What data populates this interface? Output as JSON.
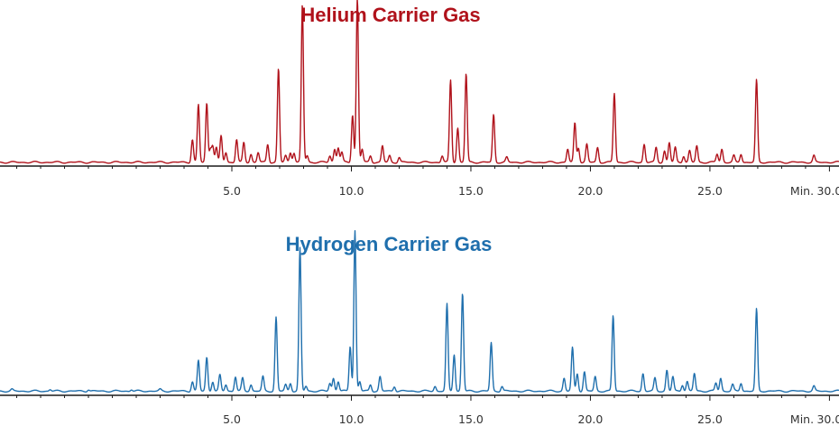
{
  "chart_data": [
    {
      "type": "line",
      "title": "Helium Carrier Gas",
      "color": "#b0121b",
      "xunit_label": "Min.",
      "xlim": [
        -4.7,
        30.4
      ],
      "ylim": [
        0,
        100
      ],
      "xticks": [
        5.0,
        10.0,
        15.0,
        20.0,
        25.0,
        30.0
      ],
      "xtick_labels": [
        "5.0",
        "10.0",
        "15.0",
        "20.0",
        "25.0",
        "30.0"
      ],
      "grid": false,
      "y_axis_shown": false,
      "baseline": 1.2,
      "peaks": [
        {
          "x": 3.35,
          "h": 14
        },
        {
          "x": 3.6,
          "h": 35
        },
        {
          "x": 3.95,
          "h": 36
        },
        {
          "x": 4.1,
          "h": 8
        },
        {
          "x": 4.2,
          "h": 10
        },
        {
          "x": 4.35,
          "h": 9
        },
        {
          "x": 4.55,
          "h": 16
        },
        {
          "x": 4.75,
          "h": 6
        },
        {
          "x": 5.2,
          "h": 14
        },
        {
          "x": 5.5,
          "h": 12
        },
        {
          "x": 5.8,
          "h": 5
        },
        {
          "x": 6.1,
          "h": 6
        },
        {
          "x": 6.5,
          "h": 11
        },
        {
          "x": 6.95,
          "h": 57
        },
        {
          "x": 7.25,
          "h": 4
        },
        {
          "x": 7.45,
          "h": 6
        },
        {
          "x": 7.6,
          "h": 6
        },
        {
          "x": 7.95,
          "h": 96
        },
        {
          "x": 8.15,
          "h": 4
        },
        {
          "x": 9.1,
          "h": 4
        },
        {
          "x": 9.3,
          "h": 8
        },
        {
          "x": 9.45,
          "h": 9
        },
        {
          "x": 9.6,
          "h": 6
        },
        {
          "x": 10.05,
          "h": 29
        },
        {
          "x": 10.25,
          "h": 100
        },
        {
          "x": 10.45,
          "h": 8
        },
        {
          "x": 10.8,
          "h": 4
        },
        {
          "x": 11.3,
          "h": 10
        },
        {
          "x": 11.6,
          "h": 4
        },
        {
          "x": 12.0,
          "h": 3
        },
        {
          "x": 13.8,
          "h": 4
        },
        {
          "x": 14.15,
          "h": 50
        },
        {
          "x": 14.45,
          "h": 21
        },
        {
          "x": 14.8,
          "h": 54
        },
        {
          "x": 15.95,
          "h": 29
        },
        {
          "x": 16.5,
          "h": 3
        },
        {
          "x": 19.05,
          "h": 8
        },
        {
          "x": 19.35,
          "h": 24
        },
        {
          "x": 19.5,
          "h": 9
        },
        {
          "x": 19.85,
          "h": 11
        },
        {
          "x": 20.3,
          "h": 9
        },
        {
          "x": 21.0,
          "h": 42
        },
        {
          "x": 22.25,
          "h": 11
        },
        {
          "x": 22.75,
          "h": 9
        },
        {
          "x": 23.1,
          "h": 7
        },
        {
          "x": 23.3,
          "h": 12
        },
        {
          "x": 23.55,
          "h": 9
        },
        {
          "x": 23.9,
          "h": 4
        },
        {
          "x": 24.15,
          "h": 7
        },
        {
          "x": 24.45,
          "h": 10
        },
        {
          "x": 25.3,
          "h": 5
        },
        {
          "x": 25.5,
          "h": 8
        },
        {
          "x": 26.0,
          "h": 4
        },
        {
          "x": 26.3,
          "h": 5
        },
        {
          "x": 26.95,
          "h": 50
        },
        {
          "x": 29.35,
          "h": 4
        }
      ]
    },
    {
      "type": "line",
      "title": "Hydrogen Carrier Gas",
      "color": "#1f6fad",
      "xunit_label": "Min.",
      "xlim": [
        -4.7,
        30.4
      ],
      "ylim": [
        0,
        100
      ],
      "xticks": [
        5.0,
        10.0,
        15.0,
        20.0,
        25.0,
        30.0
      ],
      "xtick_labels": [
        "5.0",
        "10.0",
        "15.0",
        "20.0",
        "25.0",
        "30.0"
      ],
      "grid": false,
      "y_axis_shown": false,
      "baseline": 1.5,
      "peaks": [
        {
          "x": -4.2,
          "h": 1
        },
        {
          "x": -2.6,
          "h": 1
        },
        {
          "x": -1.0,
          "h": 1
        },
        {
          "x": 0.8,
          "h": 1
        },
        {
          "x": 2.0,
          "h": 1
        },
        {
          "x": 3.35,
          "h": 6
        },
        {
          "x": 3.6,
          "h": 19
        },
        {
          "x": 3.95,
          "h": 21
        },
        {
          "x": 4.2,
          "h": 6
        },
        {
          "x": 4.5,
          "h": 10
        },
        {
          "x": 4.75,
          "h": 4
        },
        {
          "x": 5.15,
          "h": 9
        },
        {
          "x": 5.45,
          "h": 8
        },
        {
          "x": 5.8,
          "h": 4
        },
        {
          "x": 6.3,
          "h": 9
        },
        {
          "x": 6.85,
          "h": 46
        },
        {
          "x": 7.25,
          "h": 4
        },
        {
          "x": 7.45,
          "h": 5
        },
        {
          "x": 7.85,
          "h": 89
        },
        {
          "x": 8.1,
          "h": 3
        },
        {
          "x": 9.1,
          "h": 5
        },
        {
          "x": 9.25,
          "h": 8
        },
        {
          "x": 9.45,
          "h": 6
        },
        {
          "x": 9.95,
          "h": 28
        },
        {
          "x": 10.15,
          "h": 100
        },
        {
          "x": 10.35,
          "h": 6
        },
        {
          "x": 10.8,
          "h": 4
        },
        {
          "x": 11.2,
          "h": 9
        },
        {
          "x": 11.8,
          "h": 3
        },
        {
          "x": 13.5,
          "h": 3
        },
        {
          "x": 14.0,
          "h": 54
        },
        {
          "x": 14.3,
          "h": 23
        },
        {
          "x": 14.65,
          "h": 61
        },
        {
          "x": 15.85,
          "h": 30
        },
        {
          "x": 16.3,
          "h": 3
        },
        {
          "x": 18.9,
          "h": 8
        },
        {
          "x": 19.25,
          "h": 27
        },
        {
          "x": 19.45,
          "h": 11
        },
        {
          "x": 19.75,
          "h": 12
        },
        {
          "x": 20.2,
          "h": 9
        },
        {
          "x": 20.95,
          "h": 47
        },
        {
          "x": 22.2,
          "h": 11
        },
        {
          "x": 22.7,
          "h": 8
        },
        {
          "x": 23.2,
          "h": 13
        },
        {
          "x": 23.45,
          "h": 9
        },
        {
          "x": 23.85,
          "h": 4
        },
        {
          "x": 24.05,
          "h": 6
        },
        {
          "x": 24.35,
          "h": 11
        },
        {
          "x": 25.25,
          "h": 5
        },
        {
          "x": 25.45,
          "h": 8
        },
        {
          "x": 25.95,
          "h": 4
        },
        {
          "x": 26.3,
          "h": 5
        },
        {
          "x": 26.95,
          "h": 51
        },
        {
          "x": 29.35,
          "h": 3
        }
      ]
    }
  ]
}
